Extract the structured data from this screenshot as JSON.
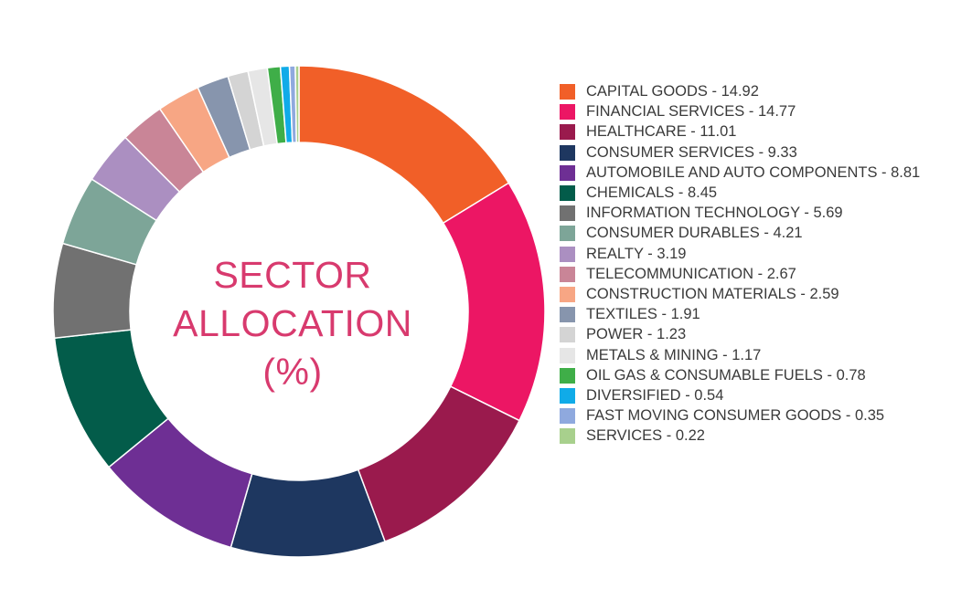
{
  "chart_data": {
    "type": "pie",
    "variant": "donut",
    "title_lines": [
      "SECTOR",
      "ALLOCATION",
      "(%)"
    ],
    "legend_position": "right",
    "slices": [
      {
        "label": "CAPITAL GOODS",
        "value": 14.92,
        "display": "14.92",
        "color": "#f15f28"
      },
      {
        "label": "FINANCIAL SERVICES",
        "value": 14.77,
        "display": "14.77",
        "color": "#ec1664"
      },
      {
        "label": "HEALTHCARE",
        "value": 11.01,
        "display": "11.01",
        "color": "#9a1a4d"
      },
      {
        "label": "CONSUMER SERVICES",
        "value": 9.33,
        "display": "9.33",
        "color": "#1e3760"
      },
      {
        "label": "AUTOMOBILE AND AUTO COMPONENTS",
        "value": 8.81,
        "display": "8.81",
        "color": "#6e2f94"
      },
      {
        "label": "CHEMICALS",
        "value": 8.45,
        "display": "8.45",
        "color": "#035c4a"
      },
      {
        "label": "INFORMATION TECHNOLOGY",
        "value": 5.69,
        "display": "5.69",
        "color": "#717171"
      },
      {
        "label": "CONSUMER DURABLES",
        "value": 4.21,
        "display": "4.21",
        "color": "#7da598"
      },
      {
        "label": "REALTY",
        "value": 3.19,
        "display": "3.19",
        "color": "#ab8fc1"
      },
      {
        "label": "TELECOMMUNICATION",
        "value": 2.67,
        "display": "2.67",
        "color": "#c98597"
      },
      {
        "label": "CONSTRUCTION MATERIALS",
        "value": 2.59,
        "display": "2.59",
        "color": "#f7a684"
      },
      {
        "label": "TEXTILES",
        "value": 1.91,
        "display": "1.91",
        "color": "#8795ad"
      },
      {
        "label": "POWER",
        "value": 1.23,
        "display": "1.23",
        "color": "#d4d4d4"
      },
      {
        "label": "METALS & MINING",
        "value": 1.17,
        "display": "1.17",
        "color": "#e6e6e6"
      },
      {
        "label": "OIL GAS & CONSUMABLE FUELS",
        "value": 0.78,
        "display": "0.78",
        "color": "#3fae48"
      },
      {
        "label": "DIVERSIFIED",
        "value": 0.54,
        "display": "0.54",
        "color": "#10abe8"
      },
      {
        "label": "FAST MOVING CONSUMER GOODS",
        "value": 0.35,
        "display": "0.35",
        "color": "#8fa9de"
      },
      {
        "label": "SERVICES",
        "value": 0.22,
        "display": "0.22",
        "color": "#a8d08d"
      }
    ]
  }
}
